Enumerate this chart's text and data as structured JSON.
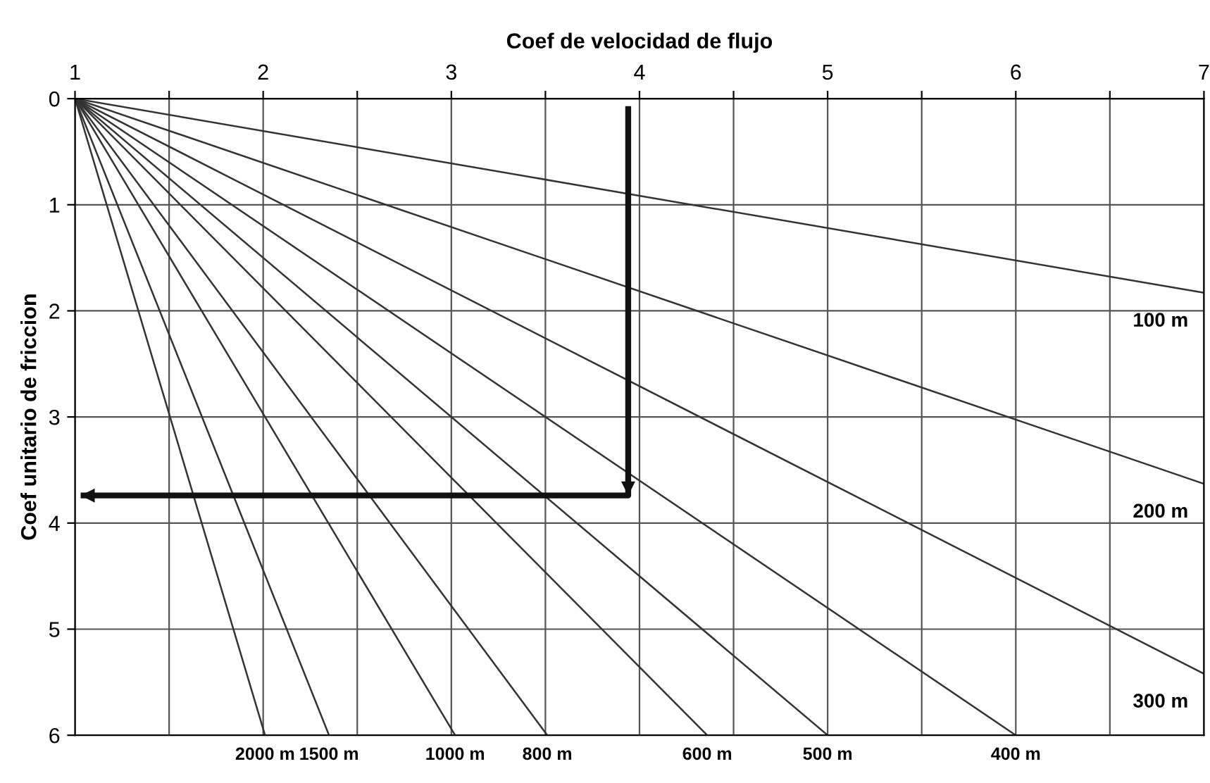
{
  "chart_data": {
    "type": "line",
    "xlabel": "Coef de velocidad de flujo",
    "ylabel": "Coef unitario de friccion",
    "xlim": [
      1,
      7
    ],
    "ylim": [
      6,
      0
    ],
    "xticks": [
      1,
      {
        "value": 1.5,
        "label": null
      },
      2,
      {
        "value": 2.5,
        "label": null
      },
      3,
      {
        "value": 3.5,
        "label": null
      },
      4,
      {
        "value": 4.5,
        "label": null
      },
      5,
      {
        "value": 5.5,
        "label": null
      },
      6,
      {
        "value": 6.5,
        "label": null
      },
      7
    ],
    "yticks": [
      0,
      1,
      2,
      3,
      4,
      5,
      6
    ],
    "grid": true,
    "legend": false,
    "marker": "none",
    "line_style": "solid",
    "series": [
      {
        "name": "100 m",
        "color": "#333333",
        "x": [
          1,
          7
        ],
        "values": [
          0,
          1.83
        ]
      },
      {
        "name": "200 m",
        "color": "#333333",
        "x": [
          1,
          7
        ],
        "values": [
          0,
          3.63
        ]
      },
      {
        "name": "300 m",
        "color": "#333333",
        "x": [
          1,
          7
        ],
        "values": [
          0,
          5.42
        ]
      },
      {
        "name": "400 m",
        "color": "#333333",
        "x": [
          1,
          6.0
        ],
        "values": [
          0,
          6
        ]
      },
      {
        "name": "500 m",
        "color": "#333333",
        "x": [
          1,
          5.0
        ],
        "values": [
          0,
          6
        ]
      },
      {
        "name": "600 m",
        "color": "#333333",
        "x": [
          1,
          4.36
        ],
        "values": [
          0,
          6
        ]
      },
      {
        "name": "800 m",
        "color": "#333333",
        "x": [
          1,
          3.51
        ],
        "values": [
          0,
          6
        ]
      },
      {
        "name": "1000 m",
        "color": "#333333",
        "x": [
          1,
          3.02
        ],
        "values": [
          0,
          6
        ]
      },
      {
        "name": "1500 m",
        "color": "#333333",
        "x": [
          1,
          2.35
        ],
        "values": [
          0,
          6
        ]
      },
      {
        "name": "2000 m",
        "color": "#333333",
        "x": [
          1,
          2.01
        ],
        "values": [
          0,
          6
        ]
      },
      {
        "color": "#111111",
        "x": [
          3.94,
          3.94,
          1.03
        ],
        "values": [
          0.07,
          3.74,
          3.74
        ]
      }
    ]
  }
}
